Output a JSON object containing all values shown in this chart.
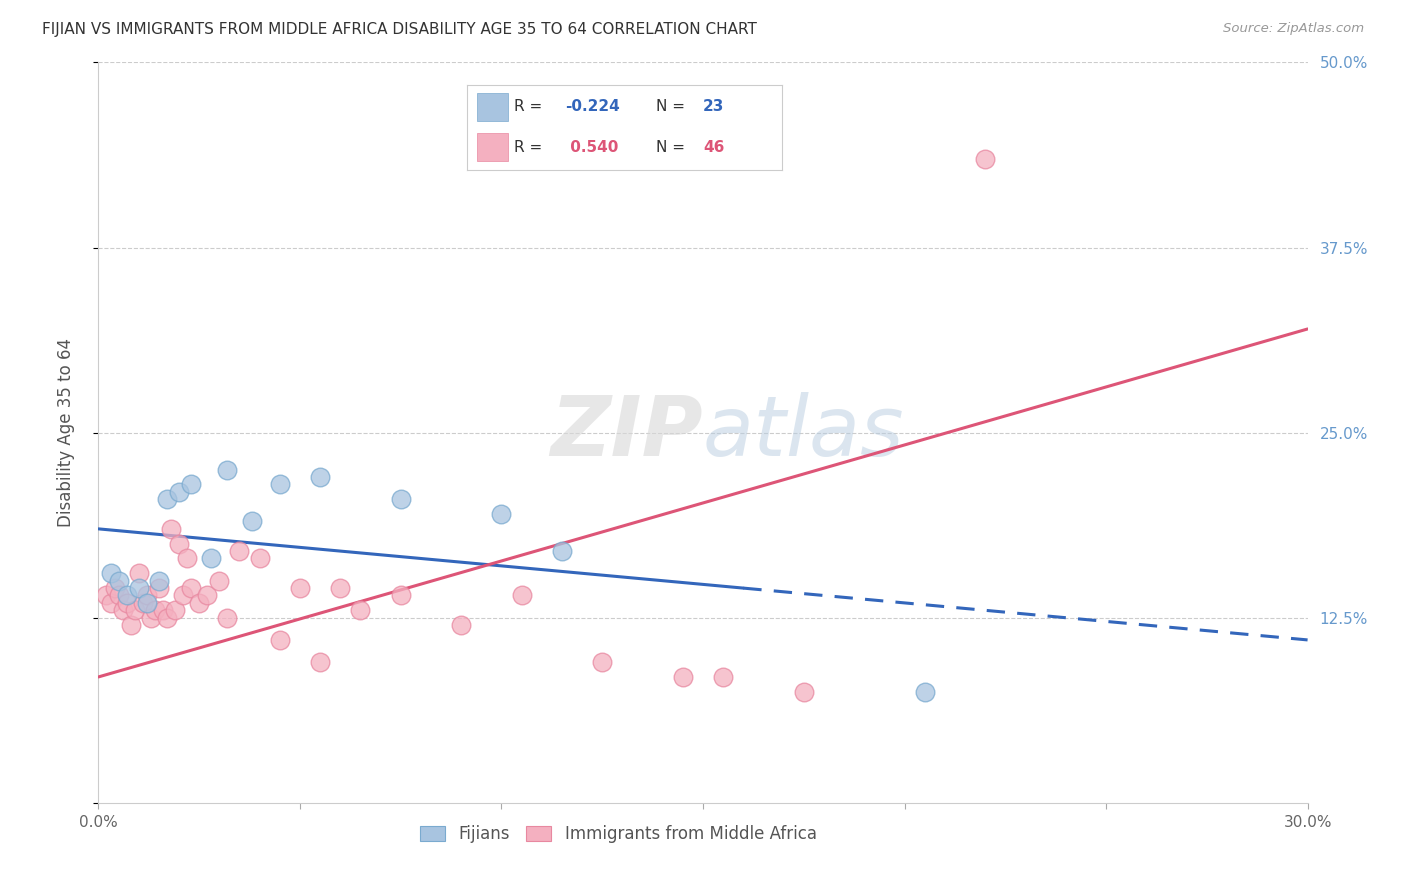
{
  "title": "FIJIAN VS IMMIGRANTS FROM MIDDLE AFRICA DISABILITY AGE 35 TO 64 CORRELATION CHART",
  "source": "Source: ZipAtlas.com",
  "ylabel": "Disability Age 35 to 64",
  "xlim": [
    0.0,
    30.0
  ],
  "ylim": [
    0.0,
    50.0
  ],
  "fijian_color": "#a8c4e0",
  "fijian_edge_color": "#7aaacf",
  "immigrant_color": "#f4b0c0",
  "immigrant_edge_color": "#e888a0",
  "fijian_line_color": "#3366bb",
  "immigrant_line_color": "#dd5577",
  "background_color": "#ffffff",
  "grid_color": "#cccccc",
  "fijian_r": "-0.224",
  "fijian_n": "23",
  "immigrant_r": "0.540",
  "immigrant_n": "46",
  "fijian_trend_x0": 0.0,
  "fijian_trend_y0": 18.5,
  "fijian_trend_x1": 30.0,
  "fijian_trend_y1": 11.0,
  "fijian_solid_end": 16.0,
  "immigrant_trend_x0": 0.0,
  "immigrant_trend_y0": 8.5,
  "immigrant_trend_x1": 30.0,
  "immigrant_trend_y1": 32.0,
  "fijian_x": [
    0.3,
    0.5,
    0.7,
    1.0,
    1.2,
    1.5,
    1.7,
    2.0,
    2.3,
    2.8,
    3.2,
    3.8,
    4.5,
    5.5,
    7.5,
    10.0,
    11.5,
    20.5
  ],
  "fijian_y": [
    15.5,
    15.0,
    14.0,
    14.5,
    13.5,
    15.0,
    20.5,
    21.0,
    21.5,
    16.5,
    22.5,
    19.0,
    21.5,
    22.0,
    20.5,
    19.5,
    17.0,
    7.5
  ],
  "immigrant_x": [
    0.2,
    0.3,
    0.4,
    0.5,
    0.6,
    0.7,
    0.8,
    0.9,
    1.0,
    1.1,
    1.2,
    1.3,
    1.4,
    1.5,
    1.6,
    1.7,
    1.8,
    1.9,
    2.0,
    2.1,
    2.2,
    2.3,
    2.5,
    2.7,
    3.0,
    3.2,
    3.5,
    4.0,
    4.5,
    5.0,
    5.5,
    6.0,
    6.5,
    7.5,
    9.0,
    10.5,
    12.5,
    14.5,
    15.5,
    17.5,
    22.0
  ],
  "immigrant_y": [
    14.0,
    13.5,
    14.5,
    14.0,
    13.0,
    13.5,
    12.0,
    13.0,
    15.5,
    13.5,
    14.0,
    12.5,
    13.0,
    14.5,
    13.0,
    12.5,
    18.5,
    13.0,
    17.5,
    14.0,
    16.5,
    14.5,
    13.5,
    14.0,
    15.0,
    12.5,
    17.0,
    16.5,
    11.0,
    14.5,
    9.5,
    14.5,
    13.0,
    14.0,
    12.0,
    14.0,
    9.5,
    8.5,
    8.5,
    7.5,
    43.5
  ]
}
